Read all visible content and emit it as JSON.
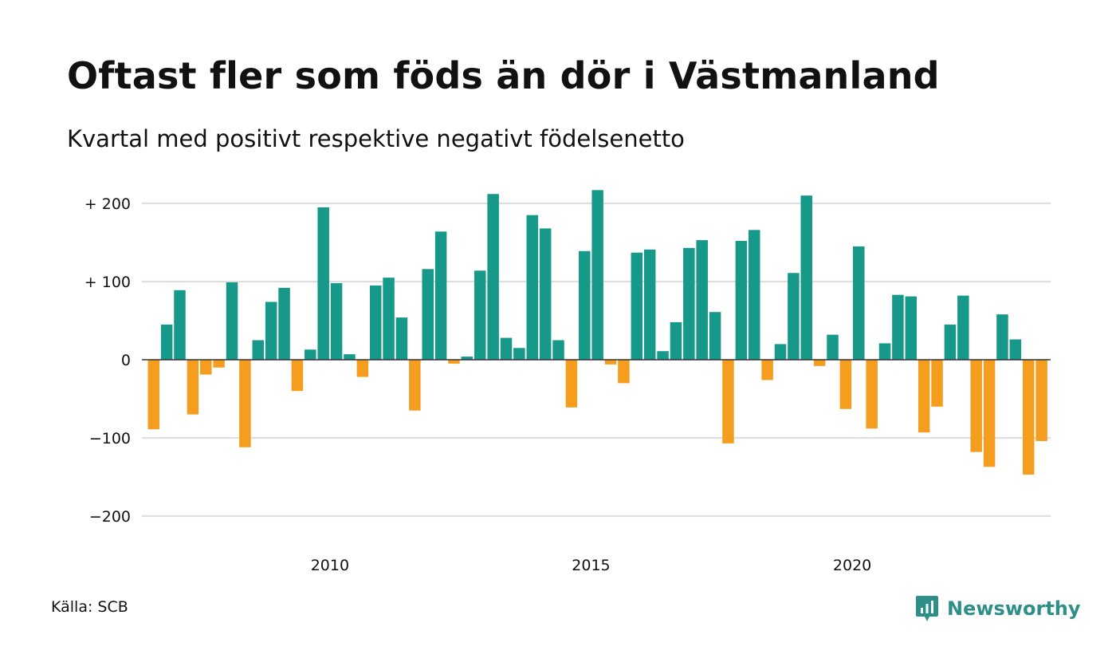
{
  "title": "Oftast fler som föds än dör i Västmanland",
  "subtitle": "Kvartal med positivt respektive negativt födelsenetto",
  "source": "Källa: SCB",
  "brand": {
    "name": "Newsworthy",
    "icon": "newsworthy-logo-icon",
    "color": "#2e8f88"
  },
  "colors": {
    "positive": "#17998a",
    "negative": "#f59d1e",
    "grid": "#dddddd",
    "zero_line": "#333333"
  },
  "chart_data": {
    "type": "bar",
    "title": "Oftast fler som föds än dör i Västmanland",
    "subtitle": "Kvartal med positivt respektive negativt födelsenetto",
    "xlabel": "",
    "ylabel": "",
    "ylim": [
      -200,
      220
    ],
    "grid": true,
    "yticks": [
      {
        "value": 200,
        "label": "+ 200"
      },
      {
        "value": 100,
        "label": "+ 100"
      },
      {
        "value": 0,
        "label": "0"
      },
      {
        "value": -100,
        "label": "−100"
      },
      {
        "value": -200,
        "label": "−200"
      }
    ],
    "xticks": [
      {
        "value": 2010,
        "label": "2010"
      },
      {
        "value": 2015,
        "label": "2015"
      },
      {
        "value": 2020,
        "label": "2020"
      }
    ],
    "x_start": "2007-Q1",
    "values": [
      -89,
      45,
      89,
      -70,
      -19,
      -10,
      99,
      -112,
      25,
      74,
      92,
      -40,
      13,
      195,
      98,
      7,
      -22,
      95,
      105,
      54,
      -65,
      116,
      164,
      -5,
      4,
      114,
      212,
      28,
      15,
      185,
      168,
      25,
      -61,
      139,
      217,
      -6,
      -30,
      137,
      141,
      11,
      48,
      143,
      153,
      61,
      -107,
      152,
      166,
      -26,
      20,
      111,
      210,
      -8,
      32,
      -63,
      145,
      -88,
      21,
      83,
      81,
      -93,
      -60,
      45,
      82,
      -118,
      -137,
      58,
      26,
      -147,
      -104
    ]
  }
}
